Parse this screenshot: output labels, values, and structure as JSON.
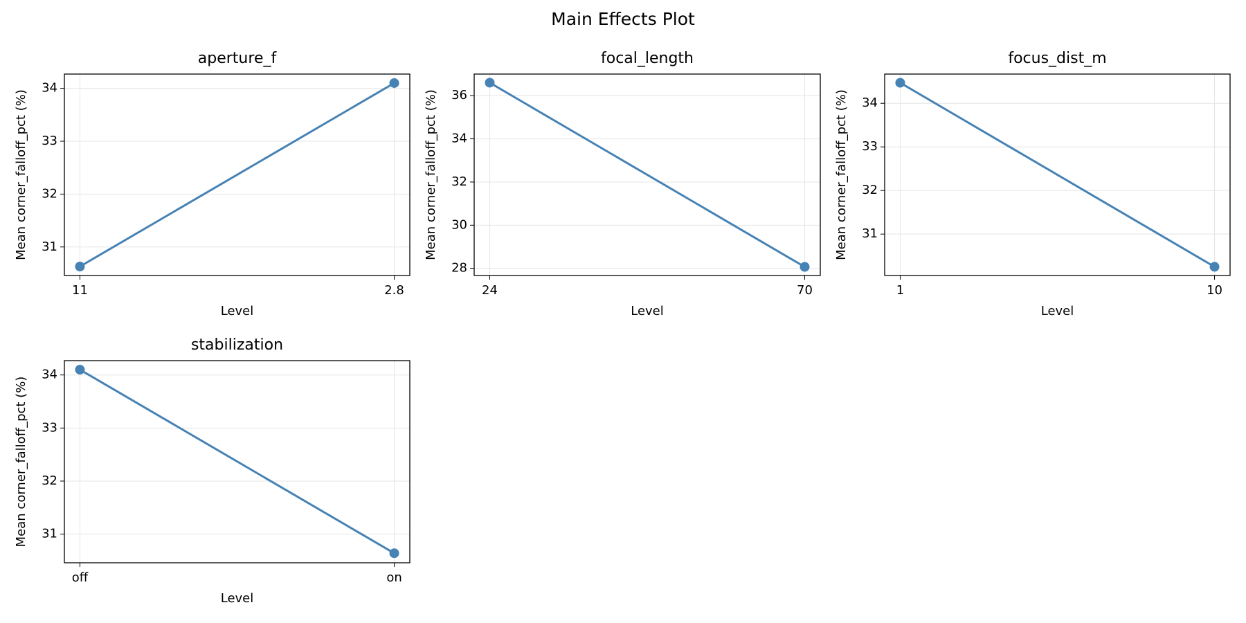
{
  "title": "Main Effects Plot",
  "chart_data": [
    {
      "type": "line",
      "title": "aperture_f",
      "x_label": "Level",
      "y_label": "Mean corner_falloff_pct (%)",
      "categories": [
        "11",
        "2.8"
      ],
      "values": [
        30.63,
        34.1
      ],
      "color": "#4682b4",
      "ylim": [
        30.46,
        34.27
      ],
      "yticks": [
        31,
        32,
        33,
        34
      ],
      "grid": true
    },
    {
      "type": "line",
      "title": "focal_length",
      "x_label": "Level",
      "y_label": "Mean corner_falloff_pct (%)",
      "categories": [
        "24",
        "70"
      ],
      "values": [
        36.6,
        28.07
      ],
      "color": "#4682b4",
      "ylim": [
        27.67,
        37.0
      ],
      "yticks": [
        28,
        30,
        32,
        34,
        36
      ],
      "grid": true
    },
    {
      "type": "line",
      "title": "focus_dist_m",
      "x_label": "Level",
      "y_label": "Mean corner_falloff_pct (%)",
      "categories": [
        "1",
        "10"
      ],
      "values": [
        34.47,
        30.25
      ],
      "color": "#4682b4",
      "ylim": [
        30.05,
        34.67
      ],
      "yticks": [
        31,
        32,
        33,
        34
      ],
      "grid": true
    },
    {
      "type": "line",
      "title": "stabilization",
      "x_label": "Level",
      "y_label": "Mean corner_falloff_pct (%)",
      "categories": [
        "off",
        "on"
      ],
      "values": [
        34.1,
        30.64
      ],
      "color": "#4682b4",
      "ylim": [
        30.46,
        34.27
      ],
      "yticks": [
        31,
        32,
        33,
        34
      ],
      "grid": true
    }
  ]
}
